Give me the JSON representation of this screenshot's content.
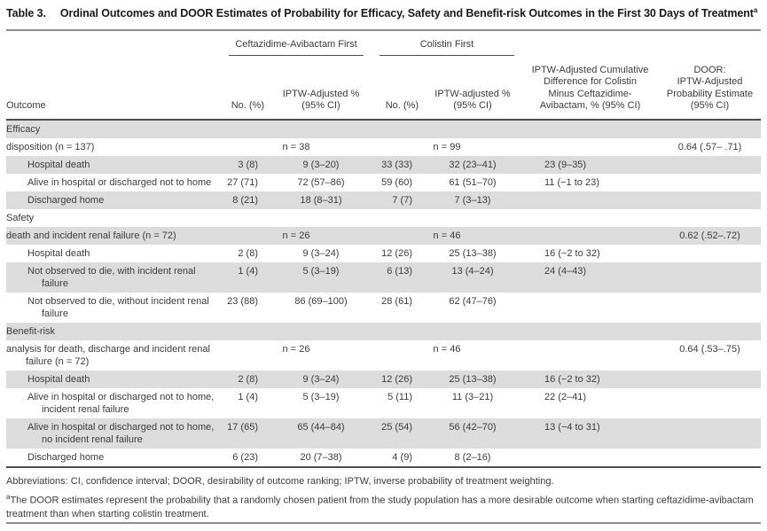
{
  "title": {
    "label": "Table 3.",
    "text": "Ordinal Outcomes and DOOR Estimates of Probability for Efficacy, Safety and Benefit-risk Outcomes in the First 30 Days of Treatment",
    "sup": "a"
  },
  "header": {
    "group1": "Ceftazidime-Avibactam First",
    "group2": "Colistin First",
    "outcome": "Outcome",
    "caz_no": "No. (%)",
    "caz_iptw": [
      "IPTW-Adjusted %",
      "(95% CI)"
    ],
    "col_no": "No. (%)",
    "col_iptw": [
      "IPTW-adjusted %",
      "(95% CI)"
    ],
    "diff": [
      "IPTW-Adjusted Cumulative",
      "Difference for Colistin",
      "Minus Ceftazidime-",
      "Avibactam, % (95% CI)"
    ],
    "door": [
      "DOOR:",
      "IPTW-Adjusted",
      "Probability Estimate",
      "(95% CI)"
    ]
  },
  "rows": [
    {
      "type": "section",
      "label": "Efficacy",
      "shaded": true
    },
    {
      "type": "analysis",
      "label": "disposition (n = 137)",
      "caz_n": "n = 38",
      "col_n": "n = 99",
      "door": "0.64 (.57– .71)",
      "shaded": false
    },
    {
      "type": "data",
      "label": "Hospital death",
      "caz_no": "3 (8)",
      "caz_iptw": "9 (3–20)",
      "col_no": "33 (33)",
      "col_iptw": "32 (23–41)",
      "diff": "23 (9–35)",
      "door": "",
      "shaded": true
    },
    {
      "type": "data",
      "label": "Alive in hospital or discharged not to home",
      "caz_no": "27 (71)",
      "caz_iptw": "72 (57–86)",
      "col_no": "59 (60)",
      "col_iptw": "61 (51–70)",
      "diff": "11 (−1 to 23)",
      "door": "",
      "shaded": false
    },
    {
      "type": "data",
      "label": "Discharged home",
      "caz_no": "8 (21)",
      "caz_iptw": "18 (8–31)",
      "col_no": "7 (7)",
      "col_iptw": "7 (3–13)",
      "diff": "",
      "door": "",
      "shaded": true
    },
    {
      "type": "section",
      "label": "Safety",
      "shaded": false
    },
    {
      "type": "analysis",
      "label": "death and incident renal failure (n = 72)",
      "caz_n": "n = 26",
      "col_n": "n = 46",
      "door": "0.62 (.52–.72)",
      "shaded": true
    },
    {
      "type": "data",
      "label": "Hospital death",
      "caz_no": "2 (8)",
      "caz_iptw": "9 (3–24)",
      "col_no": "12 (26)",
      "col_iptw": "25 (13–38)",
      "diff": "16 (−2 to 32)",
      "door": "",
      "shaded": false
    },
    {
      "type": "data",
      "label": "Not observed to die, with incident renal failure",
      "caz_no": "1 (4)",
      "caz_iptw": "5 (3–19)",
      "col_no": "6 (13)",
      "col_iptw": "13 (4–24)",
      "diff": "24 (4–43)",
      "door": "",
      "shaded": true
    },
    {
      "type": "data",
      "label": "Not observed to die, without incident renal failure",
      "caz_no": "23 (88)",
      "caz_iptw": "86 (69–100)",
      "col_no": "28 (61)",
      "col_iptw": "62 (47–76)",
      "diff": "",
      "door": "",
      "shaded": false
    },
    {
      "type": "section",
      "label": "Benefit-risk",
      "shaded": true
    },
    {
      "type": "analysis",
      "label": "analysis for death, discharge and incident renal failure (n = 72)",
      "caz_n": "n = 26",
      "col_n": "n = 46",
      "door": "0.64 (.53–.75)",
      "shaded": false
    },
    {
      "type": "data",
      "label": "Hospital death",
      "caz_no": "2 (8)",
      "caz_iptw": "9 (3–24)",
      "col_no": "12 (26)",
      "col_iptw": "25 (13–38)",
      "diff": "16 (−2 to 32)",
      "door": "",
      "shaded": true
    },
    {
      "type": "data",
      "label": "Alive in hospital or discharged not to home, incident renal failure",
      "caz_no": "1 (4)",
      "caz_iptw": "5 (3–19)",
      "col_no": "5 (11)",
      "col_iptw": "11 (3–21)",
      "diff": "22 (2–41)",
      "door": "",
      "shaded": false
    },
    {
      "type": "data",
      "label": "Alive in hospital or discharged not to home, no incident renal failure",
      "caz_no": "17 (65)",
      "caz_iptw": "65 (44–84)",
      "col_no": "25 (54)",
      "col_iptw": "56 (42–70)",
      "diff": "13 (−4 to 31)",
      "door": "",
      "shaded": true
    },
    {
      "type": "data",
      "label": "Discharged home",
      "caz_no": "6 (23)",
      "caz_iptw": "20 (7–38)",
      "col_no": "4 (9)",
      "col_iptw": "8 (2–16)",
      "diff": "",
      "door": "",
      "shaded": false
    }
  ],
  "footnotes": {
    "abbreviations": "Abbreviations: CI, confidence interval; DOOR, desirability of outcome ranking; IPTW, inverse probability of treatment weighting.",
    "sup": "a",
    "door_note": "The DOOR estimates represent the probability that a randomly chosen patient from the study population has a more desirable outcome when starting ceftazidime-avibactam treatment than when starting colistin treatment."
  },
  "colors": {
    "row_shade": "#dcdcdc",
    "rule_dark": "#4d4d4d",
    "rule_light": "#8e8e8e",
    "text": "#3c3c3c"
  }
}
